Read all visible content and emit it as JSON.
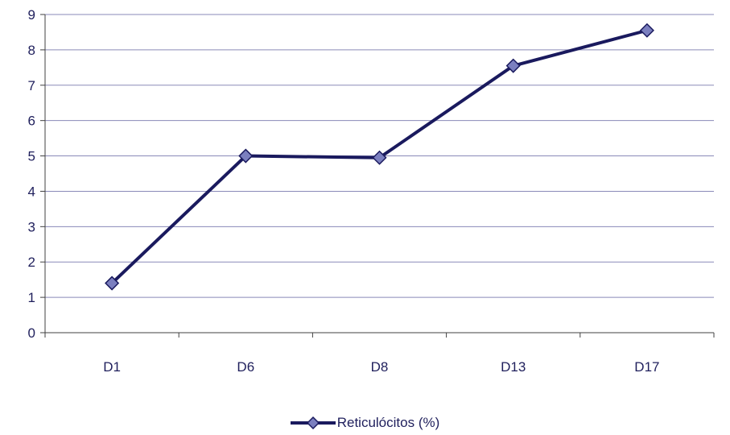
{
  "chart_data": {
    "type": "line",
    "categories": [
      "D1",
      "D6",
      "D8",
      "D13",
      "D17"
    ],
    "series": [
      {
        "name": "Reticulócitos (%)",
        "values": [
          1.4,
          5.0,
          4.95,
          7.55,
          8.55
        ]
      }
    ],
    "ylim": [
      0,
      9
    ],
    "yticks": [
      0,
      1,
      2,
      3,
      4,
      5,
      6,
      7,
      8,
      9
    ],
    "grid": true,
    "legend_position": "bottom",
    "marker": "diamond",
    "colors": {
      "line": "#1a1a5e",
      "marker_fill": "#7b7fbf",
      "grid": "#8a8ab8",
      "axis": "#404040",
      "text": "#1f1f5c"
    }
  }
}
